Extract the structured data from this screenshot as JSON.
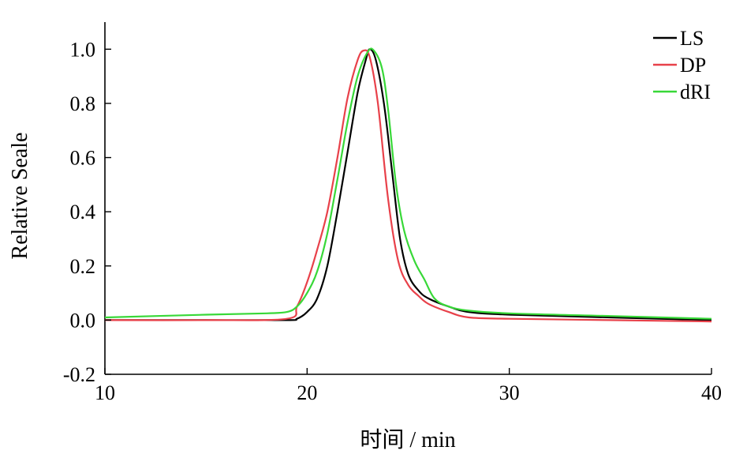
{
  "chart_data": {
    "type": "line",
    "xlabel": "时间 / min",
    "ylabel": "Relative Seale",
    "xlim": [
      10,
      40
    ],
    "ylim": [
      -0.2,
      1.1
    ],
    "xticks": [
      10,
      20,
      30,
      40
    ],
    "yticks": [
      -0.2,
      0.0,
      0.2,
      0.4,
      0.6,
      0.8,
      1.0
    ],
    "xtick_labels": [
      "10",
      "20",
      "30",
      "40"
    ],
    "ytick_labels": [
      "-0.2",
      "0.0",
      "0.2",
      "0.4",
      "0.6",
      "0.8",
      "1.0"
    ],
    "grid": false,
    "legend_position": "top-right",
    "series": [
      {
        "name": "LS",
        "color": "#000000",
        "points": [
          [
            10,
            0.0
          ],
          [
            15,
            0.0
          ],
          [
            19,
            0.0
          ],
          [
            19.5,
            0.005
          ],
          [
            20,
            0.03
          ],
          [
            20.5,
            0.08
          ],
          [
            21,
            0.2
          ],
          [
            21.5,
            0.4
          ],
          [
            22,
            0.62
          ],
          [
            22.5,
            0.84
          ],
          [
            22.9,
            0.96
          ],
          [
            23.1,
            1.0
          ],
          [
            23.4,
            0.96
          ],
          [
            23.8,
            0.8
          ],
          [
            24.2,
            0.55
          ],
          [
            24.6,
            0.3
          ],
          [
            25,
            0.17
          ],
          [
            25.5,
            0.11
          ],
          [
            26,
            0.08
          ],
          [
            27,
            0.05
          ],
          [
            28,
            0.03
          ],
          [
            30,
            0.02
          ],
          [
            35,
            0.01
          ],
          [
            40,
            0.0
          ]
        ]
      },
      {
        "name": "DP",
        "color": "#e8414a",
        "points": [
          [
            10,
            0.0
          ],
          [
            15,
            0.0
          ],
          [
            19,
            0.005
          ],
          [
            19.5,
            0.05
          ],
          [
            20,
            0.14
          ],
          [
            20.5,
            0.26
          ],
          [
            21,
            0.4
          ],
          [
            21.5,
            0.6
          ],
          [
            22,
            0.82
          ],
          [
            22.5,
            0.96
          ],
          [
            22.8,
            0.995
          ],
          [
            23.1,
            0.97
          ],
          [
            23.5,
            0.8
          ],
          [
            24,
            0.45
          ],
          [
            24.5,
            0.22
          ],
          [
            25,
            0.13
          ],
          [
            25.5,
            0.09
          ],
          [
            26,
            0.06
          ],
          [
            27,
            0.03
          ],
          [
            28,
            0.01
          ],
          [
            30,
            0.005
          ],
          [
            35,
            0.0
          ],
          [
            40,
            -0.005
          ]
        ]
      },
      {
        "name": "dRI",
        "color": "#38d838",
        "points": [
          [
            10,
            0.01
          ],
          [
            15,
            0.02
          ],
          [
            18,
            0.025
          ],
          [
            19,
            0.03
          ],
          [
            19.5,
            0.05
          ],
          [
            20,
            0.1
          ],
          [
            20.5,
            0.18
          ],
          [
            21,
            0.32
          ],
          [
            21.5,
            0.52
          ],
          [
            22,
            0.73
          ],
          [
            22.5,
            0.9
          ],
          [
            23,
            0.99
          ],
          [
            23.3,
            0.995
          ],
          [
            23.7,
            0.93
          ],
          [
            24,
            0.78
          ],
          [
            24.4,
            0.5
          ],
          [
            24.8,
            0.33
          ],
          [
            25.3,
            0.22
          ],
          [
            25.8,
            0.15
          ],
          [
            26.3,
            0.08
          ],
          [
            27,
            0.05
          ],
          [
            28,
            0.035
          ],
          [
            30,
            0.025
          ],
          [
            35,
            0.015
          ],
          [
            40,
            0.005
          ]
        ]
      }
    ]
  }
}
